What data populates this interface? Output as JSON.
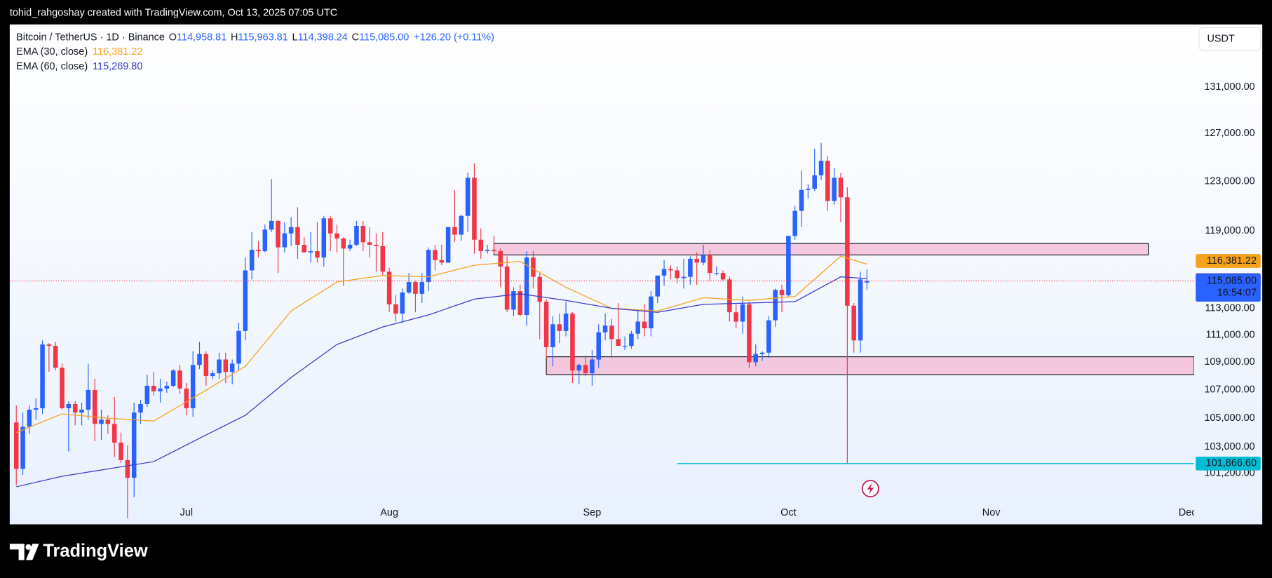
{
  "header": {
    "text": "tohid_rahgoshay created with TradingView.com, Oct 13, 2025 07:05 UTC"
  },
  "footer": {
    "brand": "TradingView"
  },
  "toolbar": {
    "currency": "USDT"
  },
  "chart_data": {
    "type": "candlestick",
    "title": "Bitcoin / TetherUS · 1D · Binance",
    "legend": {
      "ohlc": [
        {
          "key": "O",
          "value": "114,958.81"
        },
        {
          "key": "H",
          "value": "115,963.81"
        },
        {
          "key": "L",
          "value": "114,398.24"
        },
        {
          "key": "C",
          "value": "115,085.00"
        }
      ],
      "change": "+126.20 (+0.11%)"
    },
    "up_color": "#2962ff",
    "down_color": "#f23645",
    "log_scale": true,
    "grid": false,
    "x": [
      "2025-06-05",
      "2025-06-06",
      "2025-06-07",
      "2025-06-08",
      "2025-06-09",
      "2025-06-10",
      "2025-06-11",
      "2025-06-12",
      "2025-06-13",
      "2025-06-14",
      "2025-06-15",
      "2025-06-16",
      "2025-06-17",
      "2025-06-18",
      "2025-06-19",
      "2025-06-20",
      "2025-06-21",
      "2025-06-22",
      "2025-06-23",
      "2025-06-24",
      "2025-06-25",
      "2025-06-26",
      "2025-06-27",
      "2025-06-28",
      "2025-06-29",
      "2025-06-30",
      "2025-07-01",
      "2025-07-02",
      "2025-07-03",
      "2025-07-04",
      "2025-07-05",
      "2025-07-06",
      "2025-07-07",
      "2025-07-08",
      "2025-07-09",
      "2025-07-10",
      "2025-07-11",
      "2025-07-12",
      "2025-07-13",
      "2025-07-14",
      "2025-07-15",
      "2025-07-16",
      "2025-07-17",
      "2025-07-18",
      "2025-07-19",
      "2025-07-20",
      "2025-07-21",
      "2025-07-22",
      "2025-07-23",
      "2025-07-24",
      "2025-07-25",
      "2025-07-26",
      "2025-07-27",
      "2025-07-28",
      "2025-07-29",
      "2025-07-30",
      "2025-07-31",
      "2025-08-01",
      "2025-08-02",
      "2025-08-03",
      "2025-08-04",
      "2025-08-05",
      "2025-08-06",
      "2025-08-07",
      "2025-08-08",
      "2025-08-09",
      "2025-08-10",
      "2025-08-11",
      "2025-08-12",
      "2025-08-13",
      "2025-08-14",
      "2025-08-15",
      "2025-08-16",
      "2025-08-17",
      "2025-08-18",
      "2025-08-19",
      "2025-08-20",
      "2025-08-21",
      "2025-08-22",
      "2025-08-23",
      "2025-08-24",
      "2025-08-25",
      "2025-08-26",
      "2025-08-27",
      "2025-08-28",
      "2025-08-29",
      "2025-08-30",
      "2025-08-31",
      "2025-09-01",
      "2025-09-02",
      "2025-09-03",
      "2025-09-04",
      "2025-09-05",
      "2025-09-06",
      "2025-09-07",
      "2025-09-08",
      "2025-09-09",
      "2025-09-10",
      "2025-09-11",
      "2025-09-12",
      "2025-09-13",
      "2025-09-14",
      "2025-09-15",
      "2025-09-16",
      "2025-09-17",
      "2025-09-18",
      "2025-09-19",
      "2025-09-20",
      "2025-09-21",
      "2025-09-22",
      "2025-09-23",
      "2025-09-24",
      "2025-09-25",
      "2025-09-26",
      "2025-09-27",
      "2025-09-28",
      "2025-09-29",
      "2025-09-30",
      "2025-10-01",
      "2025-10-02",
      "2025-10-03",
      "2025-10-04",
      "2025-10-05",
      "2025-10-06",
      "2025-10-07",
      "2025-10-08",
      "2025-10-09",
      "2025-10-10",
      "2025-10-11",
      "2025-10-12",
      "2025-10-13"
    ],
    "open": [
      104700,
      101500,
      104400,
      105600,
      105700,
      110300,
      110200,
      108600,
      105700,
      106000,
      105400,
      105600,
      107000,
      104600,
      104900,
      104600,
      103300,
      102100,
      100900,
      105400,
      106000,
      107300,
      106900,
      107100,
      107300,
      108400,
      107100,
      105700,
      108800,
      109600,
      108000,
      108200,
      109200,
      108300,
      108900,
      111300,
      115900,
      117500,
      117400,
      119100,
      119800,
      117700,
      118800,
      119300,
      117900,
      117300,
      117400,
      116900,
      120000,
      118800,
      118400,
      117600,
      117900,
      119400,
      118100,
      117900,
      117800,
      115800,
      113300,
      112600,
      114200,
      115000,
      114100,
      115000,
      117500,
      116700,
      116500,
      119300,
      118700,
      120200,
      123300,
      118300,
      117400,
      117500,
      117400,
      116200,
      112900,
      114300,
      112500,
      116900,
      115400,
      113500,
      110100,
      111800,
      111300,
      112600,
      108400,
      108800,
      108200,
      109200,
      111200,
      111700,
      110700,
      110200,
      110200,
      111100,
      112000,
      111500,
      113900,
      115500,
      116000,
      115900,
      115300,
      115400,
      116800,
      116500,
      117100,
      115700,
      115700,
      115200,
      112700,
      112000,
      113300,
      109000,
      109600,
      109700,
      112100,
      114400,
      114000,
      118600,
      120600,
      122300,
      122400,
      123500,
      124700,
      121400,
      123300,
      121700,
      113200,
      110600,
      114958.81
    ],
    "high": [
      105900,
      105400,
      105900,
      106400,
      110600,
      110400,
      110500,
      108900,
      106200,
      106200,
      106100,
      108900,
      107800,
      105600,
      105200,
      106500,
      104000,
      103100,
      106100,
      106300,
      108100,
      108300,
      107800,
      107600,
      108500,
      108800,
      107500,
      109800,
      110500,
      109800,
      108400,
      109700,
      109700,
      109200,
      111900,
      116900,
      118900,
      118200,
      119500,
      123200,
      119900,
      119700,
      120100,
      120900,
      118500,
      118900,
      119700,
      120200,
      120200,
      119500,
      118500,
      118300,
      119800,
      119800,
      119300,
      118800,
      118900,
      116100,
      114000,
      114500,
      115700,
      115100,
      115700,
      117700,
      117900,
      117900,
      119300,
      122300,
      120300,
      123700,
      124500,
      119200,
      117900,
      118600,
      117600,
      117000,
      114600,
      114800,
      117400,
      117400,
      115800,
      113700,
      112400,
      112600,
      113500,
      112700,
      108900,
      109500,
      109900,
      111800,
      112600,
      112200,
      113400,
      110900,
      111300,
      112900,
      113300,
      114300,
      115500,
      116700,
      116300,
      116200,
      116800,
      117000,
      117300,
      117900,
      117500,
      116200,
      115900,
      115400,
      113300,
      113900,
      113500,
      110300,
      109800,
      112400,
      114500,
      114800,
      118600,
      121000,
      123900,
      122800,
      125700,
      126200,
      125100,
      124100,
      123700,
      122500,
      113400,
      115800,
      115963.81
    ],
    "low": [
      100400,
      101100,
      103900,
      104900,
      105300,
      108300,
      108400,
      105600,
      102700,
      104500,
      104500,
      104900,
      103400,
      103500,
      103900,
      102300,
      101900,
      98200,
      99600,
      104600,
      105800,
      106600,
      106100,
      106800,
      107200,
      106700,
      105200,
      105100,
      108500,
      107300,
      107800,
      107800,
      107500,
      107400,
      108400,
      110600,
      115200,
      116900,
      117300,
      118900,
      115700,
      117300,
      117800,
      116800,
      117300,
      116500,
      116500,
      116200,
      117400,
      117300,
      114700,
      117400,
      117800,
      117400,
      116900,
      115800,
      115500,
      112700,
      112000,
      111900,
      114100,
      112700,
      113400,
      114300,
      115900,
      116300,
      116500,
      118100,
      118200,
      118900,
      117200,
      116800,
      117200,
      117200,
      114600,
      112700,
      112400,
      112400,
      111700,
      114500,
      110700,
      109300,
      108700,
      110400,
      110900,
      107500,
      107400,
      108000,
      107300,
      108600,
      110600,
      109300,
      110300,
      109900,
      110000,
      110700,
      110900,
      110900,
      113400,
      114700,
      115200,
      114900,
      114500,
      114800,
      114800,
      116300,
      115100,
      115500,
      115100,
      112000,
      111500,
      111100,
      108600,
      108700,
      109100,
      109300,
      111600,
      112700,
      113900,
      118300,
      119300,
      121600,
      122200,
      123100,
      120600,
      121100,
      119700,
      101866.6,
      109700,
      109700,
      114398.24
    ],
    "close": [
      101500,
      104400,
      105600,
      105700,
      110300,
      110200,
      108600,
      105700,
      106000,
      105400,
      105600,
      107000,
      104600,
      104900,
      104600,
      103300,
      102100,
      100900,
      105400,
      106000,
      107300,
      106900,
      107100,
      107300,
      108400,
      107100,
      105700,
      108800,
      109600,
      108000,
      108200,
      109200,
      108300,
      108900,
      111300,
      115900,
      117500,
      117400,
      119100,
      119800,
      117700,
      118800,
      119300,
      117900,
      117300,
      117400,
      116900,
      120000,
      118800,
      118400,
      117600,
      117900,
      119400,
      118100,
      117900,
      117800,
      115800,
      113300,
      112600,
      114200,
      115000,
      114100,
      115000,
      117500,
      116700,
      116500,
      119300,
      118700,
      120200,
      123300,
      118300,
      117400,
      117500,
      117400,
      116200,
      112900,
      114300,
      112500,
      116900,
      115400,
      113500,
      110100,
      111800,
      111300,
      112600,
      108400,
      108800,
      108200,
      109200,
      111200,
      111700,
      110700,
      110200,
      110200,
      111100,
      112000,
      111500,
      113900,
      115500,
      116000,
      115900,
      115300,
      115400,
      116800,
      116500,
      117100,
      115700,
      115700,
      115200,
      112700,
      112000,
      113300,
      109000,
      109600,
      109700,
      112100,
      114400,
      114000,
      118600,
      120600,
      122300,
      122400,
      123500,
      124700,
      121400,
      123300,
      121700,
      113200,
      110600,
      115200,
      115085.0
    ],
    "series": [
      {
        "name": "EMA (30, close)",
        "color": "#f7a21b",
        "last_label": "116,381.22",
        "x": [
          "2025-06-05",
          "2025-06-12",
          "2025-06-19",
          "2025-06-26",
          "2025-07-03",
          "2025-07-10",
          "2025-07-17",
          "2025-07-24",
          "2025-07-31",
          "2025-08-07",
          "2025-08-14",
          "2025-08-21",
          "2025-08-28",
          "2025-09-04",
          "2025-09-11",
          "2025-09-18",
          "2025-09-25",
          "2025-10-02",
          "2025-10-09",
          "2025-10-13"
        ],
        "values": [
          104000,
          105300,
          105000,
          104800,
          106700,
          108700,
          112800,
          115000,
          115500,
          115400,
          116300,
          116600,
          114600,
          113000,
          112800,
          113800,
          113600,
          113900,
          117000,
          116381.22
        ]
      },
      {
        "name": "EMA (60, close)",
        "color": "#3c3cc8",
        "last_label": "115,269.80",
        "x": [
          "2025-06-05",
          "2025-06-12",
          "2025-06-19",
          "2025-06-26",
          "2025-07-03",
          "2025-07-10",
          "2025-07-17",
          "2025-07-24",
          "2025-07-31",
          "2025-08-07",
          "2025-08-14",
          "2025-08-21",
          "2025-08-28",
          "2025-09-04",
          "2025-09-11",
          "2025-09-18",
          "2025-09-25",
          "2025-10-02",
          "2025-10-09",
          "2025-10-13"
        ],
        "values": [
          100300,
          101000,
          101500,
          102000,
          103600,
          105200,
          107900,
          110300,
          111600,
          112500,
          113700,
          114100,
          113600,
          113000,
          112700,
          113300,
          113400,
          113500,
          115400,
          115269.8
        ]
      }
    ],
    "zone_color": "#f4b4d0",
    "zones": [
      {
        "x": [
          "2025-08-17",
          "2025-11-25"
        ],
        "y": [
          117100,
          118000
        ]
      },
      {
        "x": [
          "2025-08-25",
          "2025-12-02"
        ],
        "y": [
          108100,
          109400
        ]
      }
    ],
    "hline": {
      "value": 101866.6,
      "label": "101,866.60",
      "start": "2025-09-14",
      "color": "#00bcd4"
    },
    "price_line": {
      "label": "115,085.00",
      "countdown": "16:54:07",
      "color": "#2962ff"
    },
    "xlim": [
      "2025-06-04",
      "2025-12-02"
    ],
    "xticks": [
      {
        "value": "2025-07-01",
        "label": "Jul"
      },
      {
        "value": "2025-08-01",
        "label": "Aug"
      },
      {
        "value": "2025-09-01",
        "label": "Sep"
      },
      {
        "value": "2025-10-01",
        "label": "Oct"
      },
      {
        "value": "2025-11-01",
        "label": "Nov"
      },
      {
        "value": "2025-12-01",
        "label": "Dec"
      }
    ],
    "ylim": [
      99200,
      136600
    ],
    "yticks": [
      {
        "value": 131000,
        "label": "131,000.00"
      },
      {
        "value": 127000,
        "label": "127,000.00"
      },
      {
        "value": 123000,
        "label": "123,000.00"
      },
      {
        "value": 119000,
        "label": "119,000.00"
      },
      {
        "value": 113000,
        "label": "113,000.00"
      },
      {
        "value": 111000,
        "label": "111,000.00"
      },
      {
        "value": 109000,
        "label": "109,000.00"
      },
      {
        "value": 107000,
        "label": "107,000.00"
      },
      {
        "value": 105000,
        "label": "105,000.00"
      },
      {
        "value": 103000,
        "label": "103,000.00"
      },
      {
        "value": 101200,
        "label": "101,200.00"
      }
    ]
  }
}
